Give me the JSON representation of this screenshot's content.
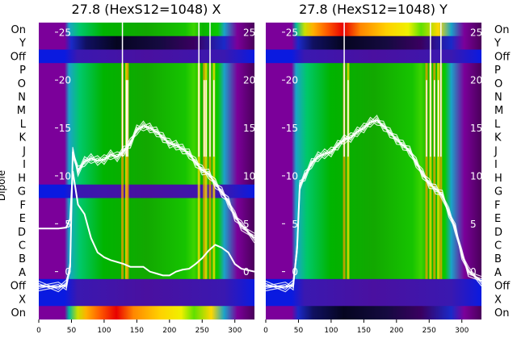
{
  "chart_data": [
    {
      "type": "heatmap",
      "title": "27.8 (HexS12=1048) X",
      "ylabel": "Dipole",
      "rows": [
        "On",
        "Y",
        "Off",
        "P",
        "O",
        "N",
        "M",
        "L",
        "K",
        "J",
        "I",
        "H",
        "G",
        "F",
        "E",
        "D",
        "C",
        "B",
        "A",
        "Off",
        "X",
        "On"
      ],
      "xlim": [
        0,
        330
      ],
      "xticks": [
        "0",
        "50",
        "100",
        "150",
        "200",
        "250",
        "300"
      ],
      "overlay_ylim": [
        -5,
        26
      ],
      "overlay_yticks": [
        "0",
        "5",
        "10",
        "15",
        "20",
        "25"
      ],
      "overlay_series": [
        {
          "x": [
            0,
            30,
            42,
            48,
            52,
            60,
            70,
            80,
            90,
            100,
            110,
            120,
            130,
            140,
            150,
            160,
            170,
            180,
            190,
            200,
            210,
            220,
            230,
            240,
            250,
            260,
            270,
            280,
            290,
            300,
            310,
            330
          ],
          "y": [
            -1.5,
            -1.6,
            -1.4,
            0.5,
            12.5,
            10.5,
            11.5,
            11.8,
            11.6,
            11.7,
            12.2,
            12.0,
            12.6,
            13.4,
            14.8,
            15.2,
            15.0,
            14.6,
            14.0,
            13.4,
            13.2,
            12.8,
            12.3,
            11.4,
            10.6,
            10.2,
            9.2,
            8.3,
            7.3,
            5.8,
            4.8,
            3.5
          ]
        },
        {
          "x": [
            0,
            30,
            42,
            48,
            52,
            60,
            70,
            80,
            90,
            100,
            110,
            120,
            130,
            140,
            150,
            160,
            170,
            180,
            190,
            200,
            210,
            220,
            230,
            240,
            250,
            260,
            270,
            280,
            290,
            300,
            310,
            330
          ],
          "y": [
            4.5,
            4.5,
            4.6,
            5.5,
            10.5,
            7.0,
            6.0,
            3.5,
            2.0,
            1.5,
            1.2,
            1.0,
            0.8,
            0.5,
            0.5,
            0.5,
            0.0,
            -0.2,
            -0.4,
            -0.4,
            0.0,
            0.2,
            0.3,
            0.8,
            1.4,
            2.2,
            2.8,
            2.5,
            2.0,
            0.8,
            0.3,
            0.0
          ]
        }
      ],
      "spikes_x": [
        128,
        134,
        136,
        245,
        253,
        256,
        262,
        268
      ]
    },
    {
      "type": "heatmap",
      "title": "27.8 (HexS12=1048) Y",
      "ylabel": "",
      "rows": [
        "On",
        "Y",
        "Off",
        "P",
        "O",
        "N",
        "M",
        "L",
        "K",
        "J",
        "I",
        "H",
        "G",
        "F",
        "E",
        "D",
        "C",
        "B",
        "A",
        "Off",
        "X",
        "On"
      ],
      "xlim": [
        0,
        330
      ],
      "xticks": [
        "0",
        "50",
        "100",
        "150",
        "200",
        "250",
        "300"
      ],
      "overlay_ylim": [
        -5,
        26
      ],
      "overlay_yticks": [
        "0",
        "5",
        "10",
        "15",
        "20",
        "25"
      ],
      "overlay_series": [
        {
          "x": [
            0,
            30,
            42,
            48,
            52,
            60,
            70,
            80,
            90,
            100,
            110,
            120,
            130,
            140,
            150,
            160,
            170,
            180,
            190,
            200,
            210,
            220,
            230,
            240,
            250,
            260,
            270,
            280,
            290,
            300,
            310,
            330
          ],
          "y": [
            -1.5,
            -1.6,
            -1.4,
            2.5,
            9.0,
            10.0,
            11.3,
            12.0,
            12.3,
            12.5,
            13.2,
            13.8,
            14.0,
            14.6,
            15.0,
            15.6,
            15.8,
            15.2,
            14.5,
            13.8,
            13.2,
            12.6,
            11.4,
            10.2,
            9.2,
            8.6,
            8.0,
            6.2,
            4.5,
            1.8,
            0.0,
            -1.0
          ]
        }
      ],
      "spikes_x": [
        120,
        126,
        246,
        252,
        258,
        264,
        268
      ]
    }
  ]
}
